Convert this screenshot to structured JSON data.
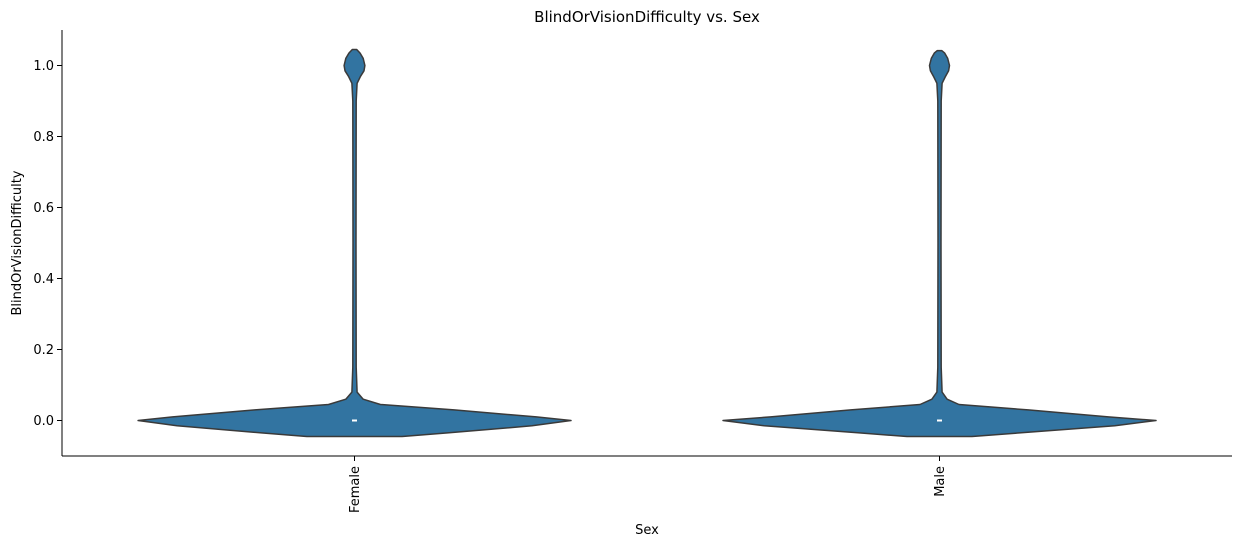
{
  "chart_data": {
    "type": "violin",
    "title": "BlindOrVisionDifficulty vs. Sex",
    "xlabel": "Sex",
    "ylabel": "BlindOrVisionDifficulty",
    "categories": [
      "Female",
      "Male"
    ],
    "ylim": [
      -0.1,
      1.1
    ],
    "yticks": [
      0.0,
      0.2,
      0.4,
      0.6,
      0.8,
      1.0
    ],
    "ytick_labels": [
      "0.0",
      "0.2",
      "0.4",
      "0.6",
      "0.8",
      "1.0"
    ],
    "color": "#3274a1",
    "edge_color": "#3a3a3a",
    "grid": false,
    "legend": "none",
    "violins": [
      {
        "category": "Female",
        "median": 0.0,
        "density_profile": [
          [
            -0.045,
            0.22
          ],
          [
            -0.035,
            0.43
          ],
          [
            -0.015,
            0.82
          ],
          [
            0.0,
            1.0
          ],
          [
            0.01,
            0.84
          ],
          [
            0.03,
            0.46
          ],
          [
            0.045,
            0.12
          ],
          [
            0.06,
            0.04
          ],
          [
            0.08,
            0.012
          ],
          [
            0.15,
            0.008
          ],
          [
            0.5,
            0.007
          ],
          [
            0.9,
            0.008
          ],
          [
            0.95,
            0.012
          ],
          [
            0.97,
            0.028
          ],
          [
            0.985,
            0.044
          ],
          [
            1.0,
            0.048
          ],
          [
            1.02,
            0.04
          ],
          [
            1.035,
            0.026
          ],
          [
            1.045,
            0.01
          ]
        ]
      },
      {
        "category": "Male",
        "median": 0.0,
        "density_profile": [
          [
            -0.045,
            0.15
          ],
          [
            -0.035,
            0.37
          ],
          [
            -0.015,
            0.81
          ],
          [
            0.0,
            1.0
          ],
          [
            0.01,
            0.78
          ],
          [
            0.03,
            0.41
          ],
          [
            0.045,
            0.09
          ],
          [
            0.06,
            0.035
          ],
          [
            0.08,
            0.012
          ],
          [
            0.15,
            0.008
          ],
          [
            0.5,
            0.007
          ],
          [
            0.9,
            0.008
          ],
          [
            0.95,
            0.012
          ],
          [
            0.97,
            0.028
          ],
          [
            0.985,
            0.042
          ],
          [
            1.0,
            0.046
          ],
          [
            1.02,
            0.038
          ],
          [
            1.035,
            0.024
          ],
          [
            1.042,
            0.01
          ]
        ]
      }
    ]
  }
}
